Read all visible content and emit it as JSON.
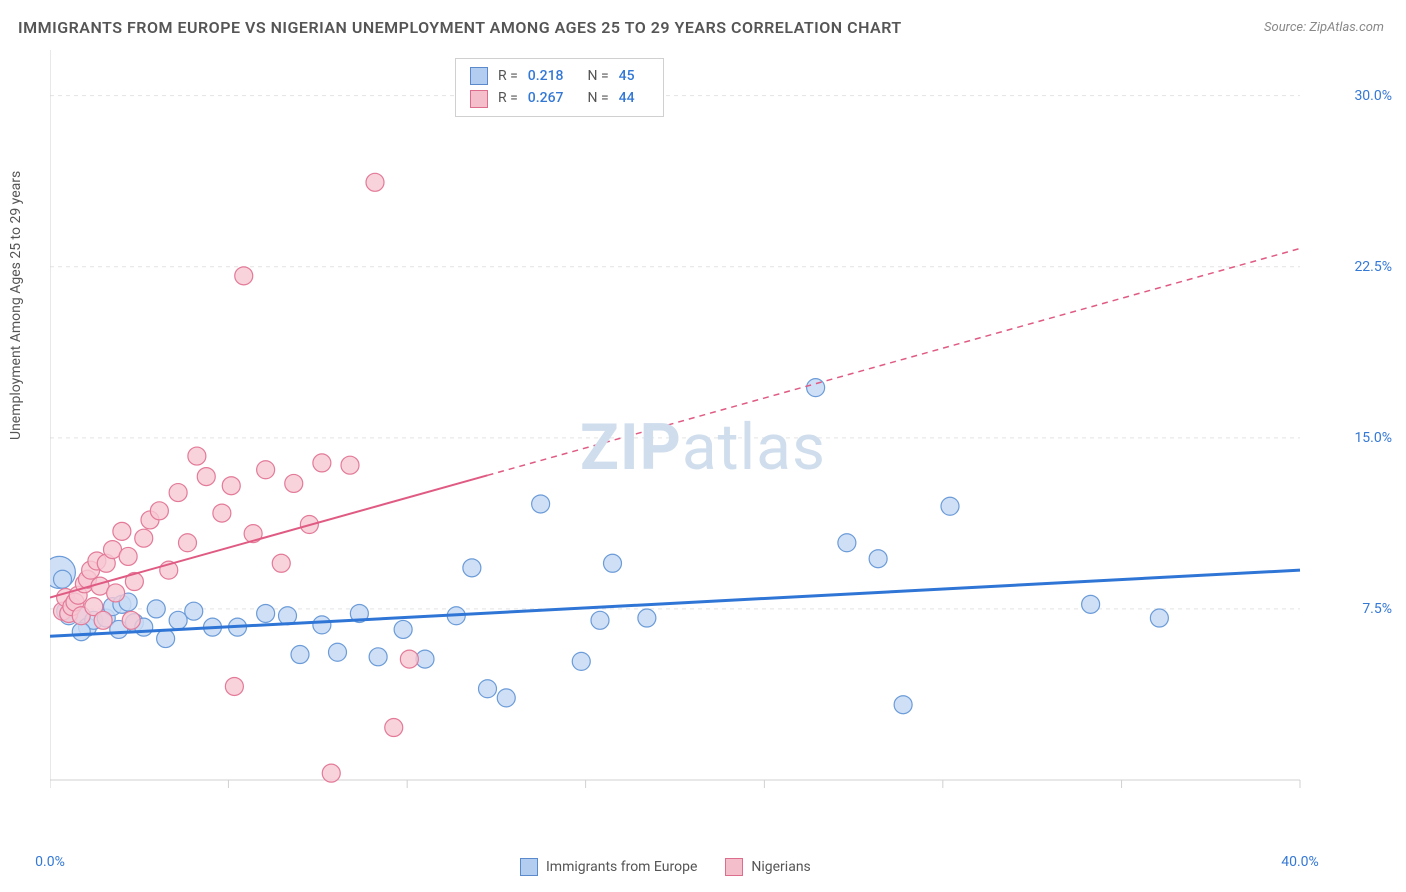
{
  "title": "IMMIGRANTS FROM EUROPE VS NIGERIAN UNEMPLOYMENT AMONG AGES 25 TO 29 YEARS CORRELATION CHART",
  "source": "Source: ZipAtlas.com",
  "y_axis_label": "Unemployment Among Ages 25 to 29 years",
  "watermark_bold": "ZIP",
  "watermark_light": "atlas",
  "chart": {
    "type": "scatter",
    "background_color": "#ffffff",
    "grid_color": "#e3e3e3",
    "axis_color": "#d0d0d0",
    "xlim": [
      0,
      40
    ],
    "ylim": [
      0,
      32
    ],
    "x_ticks_major": [
      0,
      5.71,
      11.43,
      17.14,
      22.86,
      28.57,
      34.29,
      40
    ],
    "y_ticks_major": [
      7.5,
      15.0,
      22.5,
      30.0
    ],
    "x_tick_labels": [
      {
        "pos": 0,
        "label": "0.0%"
      },
      {
        "pos": 40,
        "label": "40.0%"
      }
    ],
    "y_tick_labels": [
      {
        "pos": 7.5,
        "label": "7.5%"
      },
      {
        "pos": 15.0,
        "label": "15.0%"
      },
      {
        "pos": 22.5,
        "label": "22.5%"
      },
      {
        "pos": 30.0,
        "label": "30.0%"
      }
    ],
    "series": [
      {
        "name": "Immigrants from Europe",
        "color_fill": "#c7dbf5",
        "color_stroke": "#6b9bd8",
        "swatch_fill": "#b3cdf0",
        "swatch_stroke": "#5a8acb",
        "R": "0.218",
        "N": "45",
        "marker_radius": 9,
        "marker_opacity": 0.85,
        "trend": {
          "x1": 0,
          "y1": 6.3,
          "x2": 40,
          "y2": 9.2,
          "dash": "none",
          "width": 2.5,
          "color": "#2f75d6",
          "solid_extent": 40
        },
        "points": [
          [
            0.4,
            8.8
          ],
          [
            0.5,
            7.4
          ],
          [
            0.6,
            7.2
          ],
          [
            1.0,
            7.2
          ],
          [
            1.2,
            6.7
          ],
          [
            1.4,
            7.0
          ],
          [
            1.8,
            7.1
          ],
          [
            2.0,
            7.6
          ],
          [
            2.2,
            6.6
          ],
          [
            2.3,
            7.7
          ],
          [
            2.5,
            7.8
          ],
          [
            2.7,
            6.9
          ],
          [
            3.0,
            6.7
          ],
          [
            3.4,
            7.5
          ],
          [
            4.1,
            7.0
          ],
          [
            4.6,
            7.4
          ],
          [
            5.2,
            6.7
          ],
          [
            6.0,
            6.7
          ],
          [
            6.9,
            7.3
          ],
          [
            7.6,
            7.2
          ],
          [
            8.0,
            5.5
          ],
          [
            8.7,
            6.8
          ],
          [
            9.2,
            5.6
          ],
          [
            9.9,
            7.3
          ],
          [
            10.5,
            5.4
          ],
          [
            11.3,
            6.6
          ],
          [
            12.0,
            5.3
          ],
          [
            13.0,
            7.2
          ],
          [
            13.5,
            9.3
          ],
          [
            14.0,
            4.0
          ],
          [
            14.6,
            3.6
          ],
          [
            15.7,
            12.1
          ],
          [
            17.0,
            5.2
          ],
          [
            17.6,
            7.0
          ],
          [
            18.0,
            9.5
          ],
          [
            19.1,
            7.1
          ],
          [
            24.5,
            17.2
          ],
          [
            25.5,
            10.4
          ],
          [
            26.5,
            9.7
          ],
          [
            27.3,
            3.3
          ],
          [
            28.8,
            12.0
          ],
          [
            33.3,
            7.7
          ],
          [
            35.5,
            7.1
          ],
          [
            1.0,
            6.5
          ],
          [
            3.7,
            6.2
          ]
        ],
        "large_points": [
          [
            0.3,
            9.1,
            16
          ]
        ]
      },
      {
        "name": "Nigerians",
        "color_fill": "#f6c8d3",
        "color_stroke": "#e37a98",
        "swatch_fill": "#f4bfcb",
        "swatch_stroke": "#dc6d8d",
        "R": "0.267",
        "N": "44",
        "marker_radius": 9,
        "marker_opacity": 0.8,
        "trend": {
          "x1": 0,
          "y1": 8.0,
          "x2": 40,
          "y2": 23.3,
          "dash": "6,5",
          "width": 1.5,
          "color": "#e05b83",
          "solid_extent": 14
        },
        "points": [
          [
            0.4,
            7.4
          ],
          [
            0.5,
            8.0
          ],
          [
            0.6,
            7.3
          ],
          [
            0.7,
            7.6
          ],
          [
            0.8,
            7.8
          ],
          [
            0.9,
            8.1
          ],
          [
            1.0,
            7.2
          ],
          [
            1.1,
            8.6
          ],
          [
            1.2,
            8.8
          ],
          [
            1.3,
            9.2
          ],
          [
            1.4,
            7.6
          ],
          [
            1.5,
            9.6
          ],
          [
            1.6,
            8.5
          ],
          [
            1.8,
            9.5
          ],
          [
            2.0,
            10.1
          ],
          [
            2.1,
            8.2
          ],
          [
            2.3,
            10.9
          ],
          [
            2.5,
            9.8
          ],
          [
            2.7,
            8.7
          ],
          [
            3.0,
            10.6
          ],
          [
            3.2,
            11.4
          ],
          [
            3.5,
            11.8
          ],
          [
            3.8,
            9.2
          ],
          [
            4.1,
            12.6
          ],
          [
            4.4,
            10.4
          ],
          [
            4.7,
            14.2
          ],
          [
            5.0,
            13.3
          ],
          [
            5.5,
            11.7
          ],
          [
            5.8,
            12.9
          ],
          [
            6.2,
            22.1
          ],
          [
            6.5,
            10.8
          ],
          [
            6.9,
            13.6
          ],
          [
            7.4,
            9.5
          ],
          [
            7.8,
            13.0
          ],
          [
            8.3,
            11.2
          ],
          [
            8.7,
            13.9
          ],
          [
            9.0,
            0.3
          ],
          [
            9.6,
            13.8
          ],
          [
            10.4,
            26.2
          ],
          [
            11.0,
            2.3
          ],
          [
            11.5,
            5.3
          ],
          [
            5.9,
            4.1
          ],
          [
            2.6,
            7.0
          ],
          [
            1.7,
            7.0
          ]
        ],
        "large_points": []
      }
    ]
  },
  "legend_stats": {
    "label_R": "R  = ",
    "label_N": "N  = "
  },
  "bottom_legend": {
    "series1": "Immigrants from Europe",
    "series2": "Nigerians"
  }
}
